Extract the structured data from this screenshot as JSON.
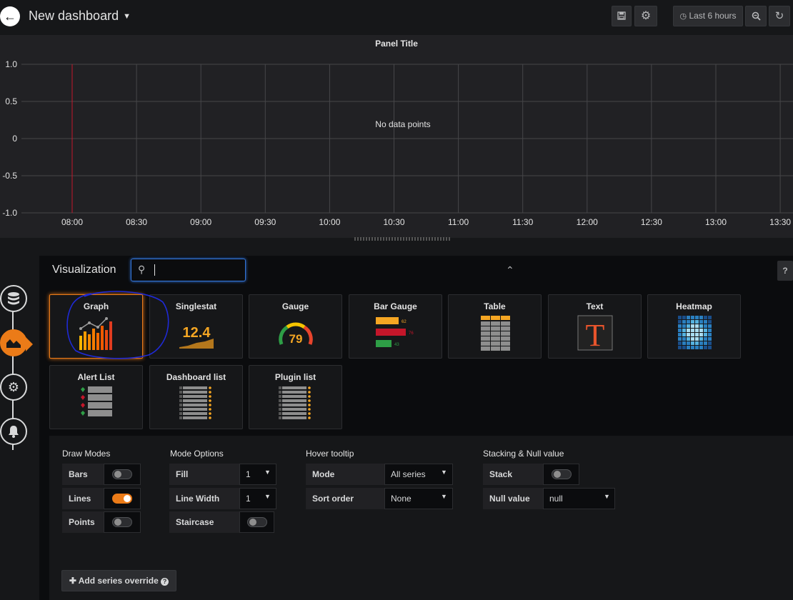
{
  "header": {
    "title": "New dashboard",
    "time_range_label": "Last 6 hours"
  },
  "panel": {
    "title": "Panel Title",
    "empty_message": "No data points"
  },
  "chart_data": {
    "type": "line",
    "title": "Panel Title",
    "x_ticks": [
      "08:00",
      "08:30",
      "09:00",
      "09:30",
      "10:00",
      "10:30",
      "11:00",
      "11:30",
      "12:00",
      "12:30",
      "13:00",
      "13:30"
    ],
    "y_ticks": [
      "1.0",
      "0.5",
      "0",
      "-0.5",
      "-1.0"
    ],
    "ylim": [
      -1.0,
      1.0
    ],
    "series": [],
    "grid": true,
    "marker_line_color": "#c4162a"
  },
  "visualization": {
    "label": "Visualization",
    "search_value": "",
    "cards": [
      {
        "label": "Graph",
        "selected": true
      },
      {
        "label": "Singlestat",
        "thumb_value": "12.4"
      },
      {
        "label": "Gauge",
        "thumb_value": "79"
      },
      {
        "label": "Bar Gauge",
        "thumb_values": [
          "62",
          "76",
          "43"
        ]
      },
      {
        "label": "Table"
      },
      {
        "label": "Text",
        "thumb_value": "T"
      },
      {
        "label": "Heatmap"
      },
      {
        "label": "Alert List"
      },
      {
        "label": "Dashboard list"
      },
      {
        "label": "Plugin list"
      }
    ]
  },
  "options": {
    "draw_modes": {
      "title": "Draw Modes",
      "bars": {
        "label": "Bars",
        "on": false
      },
      "lines": {
        "label": "Lines",
        "on": true
      },
      "points": {
        "label": "Points",
        "on": false
      }
    },
    "mode_options": {
      "title": "Mode Options",
      "fill": {
        "label": "Fill",
        "value": "1"
      },
      "line_width": {
        "label": "Line Width",
        "value": "1"
      },
      "staircase": {
        "label": "Staircase",
        "on": false
      }
    },
    "hover_tooltip": {
      "title": "Hover tooltip",
      "mode": {
        "label": "Mode",
        "value": "All series"
      },
      "sort_order": {
        "label": "Sort order",
        "value": "None"
      }
    },
    "stacking": {
      "title": "Stacking & Null value",
      "stack": {
        "label": "Stack",
        "on": false
      },
      "null_value": {
        "label": "Null value",
        "value": "null"
      }
    },
    "add_override_label": "Add series override"
  },
  "colors": {
    "accent": "#eb7b18",
    "focus": "#3274d9",
    "annotation": "#1f2ad6"
  }
}
